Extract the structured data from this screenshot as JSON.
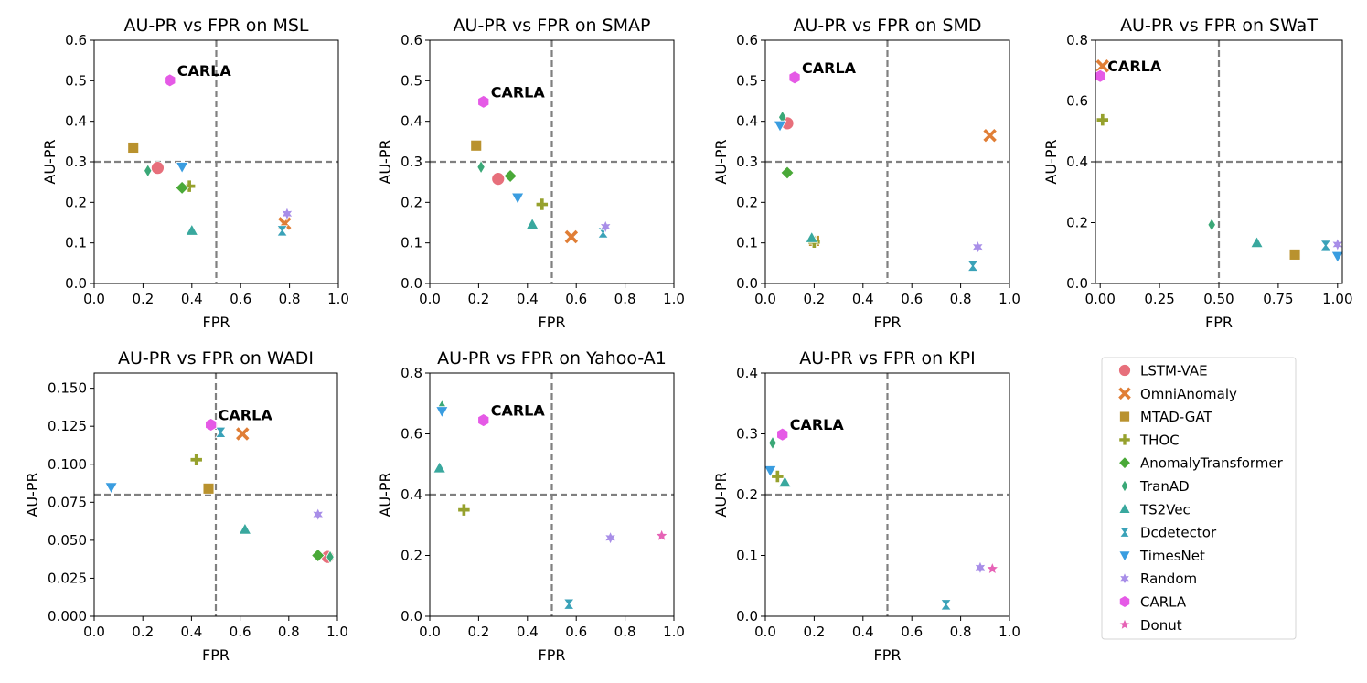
{
  "figure": "AU-PR vs FPR small multiples",
  "legend": [
    {
      "name": "LSTM-VAE",
      "color": "#e76f7b",
      "marker": "circle"
    },
    {
      "name": "OmniAnomaly",
      "color": "#e07e36",
      "marker": "x"
    },
    {
      "name": "MTAD-GAT",
      "color": "#b9922e",
      "marker": "square"
    },
    {
      "name": "THOC",
      "color": "#96a12d",
      "marker": "plus"
    },
    {
      "name": "AnomalyTransformer",
      "color": "#4aa938",
      "marker": "diamond"
    },
    {
      "name": "TranAD",
      "color": "#3aa877",
      "marker": "thin-diamond"
    },
    {
      "name": "TS2Vec",
      "color": "#39a89e",
      "marker": "triangle-up"
    },
    {
      "name": "Dcdetector",
      "color": "#3aa2b8",
      "marker": "bowtie"
    },
    {
      "name": "TimesNet",
      "color": "#3a9de0",
      "marker": "triangle-down"
    },
    {
      "name": "Random",
      "color": "#a88ee8",
      "marker": "star6"
    },
    {
      "name": "CARLA",
      "color": "#e55ae6",
      "marker": "hexagon"
    },
    {
      "name": "Donut",
      "color": "#e663b6",
      "marker": "star5"
    }
  ],
  "chart_data": [
    {
      "type": "scatter",
      "title": "AU-PR vs FPR on MSL",
      "xlabel": "FPR",
      "ylabel": "AU-PR",
      "xlim": [
        0,
        1
      ],
      "ylim": [
        0,
        0.6
      ],
      "xticks": [
        0,
        0.2,
        0.4,
        0.6,
        0.8,
        1.0
      ],
      "xtick_labels": [
        "0.0",
        "0.2",
        "0.4",
        "0.6",
        "0.8",
        "1.0"
      ],
      "yticks": [
        0,
        0.1,
        0.2,
        0.3,
        0.4,
        0.5,
        0.6
      ],
      "ytick_labels": [
        "0.0",
        "0.1",
        "0.2",
        "0.3",
        "0.4",
        "0.5",
        "0.6"
      ],
      "threshold_x": 0.5,
      "threshold_y": 0.3,
      "annotation": "CARLA",
      "points": [
        {
          "method": "LSTM-VAE",
          "x": 0.26,
          "y": 0.285
        },
        {
          "method": "OmniAnomaly",
          "x": 0.78,
          "y": 0.148
        },
        {
          "method": "MTAD-GAT",
          "x": 0.16,
          "y": 0.335
        },
        {
          "method": "THOC",
          "x": 0.39,
          "y": 0.24
        },
        {
          "method": "AnomalyTransformer",
          "x": 0.36,
          "y": 0.236
        },
        {
          "method": "TranAD",
          "x": 0.22,
          "y": 0.278
        },
        {
          "method": "TS2Vec",
          "x": 0.4,
          "y": 0.13
        },
        {
          "method": "Dcdetector",
          "x": 0.77,
          "y": 0.13
        },
        {
          "method": "TimesNet",
          "x": 0.36,
          "y": 0.288
        },
        {
          "method": "Random",
          "x": 0.79,
          "y": 0.172
        },
        {
          "method": "CARLA",
          "x": 0.31,
          "y": 0.501
        }
      ]
    },
    {
      "type": "scatter",
      "title": "AU-PR vs FPR on SMAP",
      "xlabel": "FPR",
      "ylabel": "AU-PR",
      "xlim": [
        0,
        1
      ],
      "ylim": [
        0,
        0.6
      ],
      "xticks": [
        0,
        0.2,
        0.4,
        0.6,
        0.8,
        1.0
      ],
      "xtick_labels": [
        "0.0",
        "0.2",
        "0.4",
        "0.6",
        "0.8",
        "1.0"
      ],
      "yticks": [
        0,
        0.1,
        0.2,
        0.3,
        0.4,
        0.5,
        0.6
      ],
      "ytick_labels": [
        "0.0",
        "0.1",
        "0.2",
        "0.3",
        "0.4",
        "0.5",
        "0.6"
      ],
      "threshold_x": 0.5,
      "threshold_y": 0.3,
      "annotation": "CARLA",
      "points": [
        {
          "method": "LSTM-VAE",
          "x": 0.28,
          "y": 0.258
        },
        {
          "method": "OmniAnomaly",
          "x": 0.58,
          "y": 0.115
        },
        {
          "method": "MTAD-GAT",
          "x": 0.19,
          "y": 0.34
        },
        {
          "method": "THOC",
          "x": 0.46,
          "y": 0.195
        },
        {
          "method": "AnomalyTransformer",
          "x": 0.33,
          "y": 0.265
        },
        {
          "method": "TranAD",
          "x": 0.21,
          "y": 0.287
        },
        {
          "method": "TS2Vec",
          "x": 0.42,
          "y": 0.145
        },
        {
          "method": "Dcdetector",
          "x": 0.71,
          "y": 0.125
        },
        {
          "method": "TimesNet",
          "x": 0.36,
          "y": 0.212
        },
        {
          "method": "Random",
          "x": 0.72,
          "y": 0.14
        },
        {
          "method": "CARLA",
          "x": 0.22,
          "y": 0.448
        }
      ]
    },
    {
      "type": "scatter",
      "title": "AU-PR vs FPR on SMD",
      "xlabel": "FPR",
      "ylabel": "AU-PR",
      "xlim": [
        0,
        1
      ],
      "ylim": [
        0,
        0.6
      ],
      "xticks": [
        0,
        0.2,
        0.4,
        0.6,
        0.8,
        1.0
      ],
      "xtick_labels": [
        "0.0",
        "0.2",
        "0.4",
        "0.6",
        "0.8",
        "1.0"
      ],
      "yticks": [
        0,
        0.1,
        0.2,
        0.3,
        0.4,
        0.5,
        0.6
      ],
      "ytick_labels": [
        "0.0",
        "0.1",
        "0.2",
        "0.3",
        "0.4",
        "0.5",
        "0.6"
      ],
      "threshold_x": 0.5,
      "threshold_y": 0.3,
      "annotation": "CARLA",
      "points": [
        {
          "method": "LSTM-VAE",
          "x": 0.09,
          "y": 0.395
        },
        {
          "method": "OmniAnomaly",
          "x": 0.92,
          "y": 0.365
        },
        {
          "method": "MTAD-GAT",
          "x": 0.2,
          "y": 0.105
        },
        {
          "method": "THOC",
          "x": 0.2,
          "y": 0.102
        },
        {
          "method": "AnomalyTransformer",
          "x": 0.09,
          "y": 0.273
        },
        {
          "method": "TranAD",
          "x": 0.07,
          "y": 0.41
        },
        {
          "method": "TS2Vec",
          "x": 0.19,
          "y": 0.112
        },
        {
          "method": "Dcdetector",
          "x": 0.85,
          "y": 0.043
        },
        {
          "method": "TimesNet",
          "x": 0.06,
          "y": 0.39
        },
        {
          "method": "Random",
          "x": 0.87,
          "y": 0.09
        },
        {
          "method": "CARLA",
          "x": 0.12,
          "y": 0.508
        }
      ]
    },
    {
      "type": "scatter",
      "title": "AU-PR vs FPR on SWaT",
      "xlabel": "FPR",
      "ylabel": "AU-PR",
      "xlim": [
        -0.02,
        1.02
      ],
      "ylim": [
        0,
        0.8
      ],
      "xticks": [
        0,
        0.25,
        0.5,
        0.75,
        1.0
      ],
      "xtick_labels": [
        "0.00",
        "0.25",
        "0.50",
        "0.75",
        "1.00"
      ],
      "yticks": [
        0,
        0.2,
        0.4,
        0.6,
        0.8
      ],
      "ytick_labels": [
        "0.0",
        "0.2",
        "0.4",
        "0.6",
        "0.8"
      ],
      "threshold_x": 0.5,
      "threshold_y": 0.4,
      "annotation": "CARLA",
      "points": [
        {
          "method": "OmniAnomaly",
          "x": 0.01,
          "y": 0.715
        },
        {
          "method": "MTAD-GAT",
          "x": 0.82,
          "y": 0.095
        },
        {
          "method": "THOC",
          "x": 0.01,
          "y": 0.538
        },
        {
          "method": "TranAD",
          "x": 0.47,
          "y": 0.193
        },
        {
          "method": "TS2Vec",
          "x": 0.66,
          "y": 0.133
        },
        {
          "method": "Dcdetector",
          "x": 0.95,
          "y": 0.125
        },
        {
          "method": "TimesNet",
          "x": 1.0,
          "y": 0.09
        },
        {
          "method": "Random",
          "x": 1.0,
          "y": 0.128
        },
        {
          "method": "CARLA",
          "x": 0.0,
          "y": 0.682
        }
      ]
    },
    {
      "type": "scatter",
      "title": "AU-PR vs FPR on WADI",
      "xlabel": "FPR",
      "ylabel": "AU-PR",
      "xlim": [
        0,
        1
      ],
      "ylim": [
        0,
        0.16
      ],
      "xticks": [
        0,
        0.2,
        0.4,
        0.6,
        0.8,
        1.0
      ],
      "xtick_labels": [
        "0.0",
        "0.2",
        "0.4",
        "0.6",
        "0.8",
        "1.0"
      ],
      "yticks": [
        0,
        0.025,
        0.05,
        0.075,
        0.1,
        0.125,
        0.15
      ],
      "ytick_labels": [
        "0.000",
        "0.025",
        "0.050",
        "0.075",
        "0.100",
        "0.125",
        "0.150"
      ],
      "threshold_x": 0.5,
      "threshold_y": 0.08,
      "annotation": "CARLA",
      "points": [
        {
          "method": "LSTM-VAE",
          "x": 0.96,
          "y": 0.039
        },
        {
          "method": "OmniAnomaly",
          "x": 0.61,
          "y": 0.12
        },
        {
          "method": "MTAD-GAT",
          "x": 0.47,
          "y": 0.084
        },
        {
          "method": "THOC",
          "x": 0.42,
          "y": 0.103
        },
        {
          "method": "AnomalyTransformer",
          "x": 0.92,
          "y": 0.04
        },
        {
          "method": "TranAD",
          "x": 0.97,
          "y": 0.039
        },
        {
          "method": "TS2Vec",
          "x": 0.62,
          "y": 0.057
        },
        {
          "method": "Dcdetector",
          "x": 0.52,
          "y": 0.121
        },
        {
          "method": "TimesNet",
          "x": 0.07,
          "y": 0.085
        },
        {
          "method": "Random",
          "x": 0.92,
          "y": 0.067
        },
        {
          "method": "CARLA",
          "x": 0.48,
          "y": 0.126
        }
      ]
    },
    {
      "type": "scatter",
      "title": "AU-PR vs FPR on Yahoo-A1",
      "xlabel": "FPR",
      "ylabel": "AU-PR",
      "xlim": [
        0,
        1
      ],
      "ylim": [
        0,
        0.8
      ],
      "xticks": [
        0,
        0.2,
        0.4,
        0.6,
        0.8,
        1.0
      ],
      "xtick_labels": [
        "0.0",
        "0.2",
        "0.4",
        "0.6",
        "0.8",
        "1.0"
      ],
      "yticks": [
        0,
        0.2,
        0.4,
        0.6,
        0.8
      ],
      "ytick_labels": [
        "0.0",
        "0.2",
        "0.4",
        "0.6",
        "0.8"
      ],
      "threshold_x": 0.5,
      "threshold_y": 0.4,
      "annotation": "CARLA",
      "points": [
        {
          "method": "THOC",
          "x": 0.14,
          "y": 0.35
        },
        {
          "method": "TranAD",
          "x": 0.05,
          "y": 0.69
        },
        {
          "method": "TS2Vec",
          "x": 0.04,
          "y": 0.487
        },
        {
          "method": "Dcdetector",
          "x": 0.57,
          "y": 0.04
        },
        {
          "method": "TimesNet",
          "x": 0.05,
          "y": 0.675
        },
        {
          "method": "Random",
          "x": 0.74,
          "y": 0.258
        },
        {
          "method": "CARLA",
          "x": 0.22,
          "y": 0.645
        },
        {
          "method": "Donut",
          "x": 0.95,
          "y": 0.265
        }
      ]
    },
    {
      "type": "scatter",
      "title": "AU-PR vs FPR on KPI",
      "xlabel": "FPR",
      "ylabel": "AU-PR",
      "xlim": [
        0,
        1
      ],
      "ylim": [
        0,
        0.4
      ],
      "xticks": [
        0,
        0.2,
        0.4,
        0.6,
        0.8,
        1.0
      ],
      "xtick_labels": [
        "0.0",
        "0.2",
        "0.4",
        "0.6",
        "0.8",
        "1.0"
      ],
      "yticks": [
        0,
        0.1,
        0.2,
        0.3,
        0.4
      ],
      "ytick_labels": [
        "0.0",
        "0.1",
        "0.2",
        "0.3",
        "0.4"
      ],
      "threshold_x": 0.5,
      "threshold_y": 0.2,
      "annotation": "CARLA",
      "points": [
        {
          "method": "THOC",
          "x": 0.05,
          "y": 0.23
        },
        {
          "method": "TranAD",
          "x": 0.03,
          "y": 0.285
        },
        {
          "method": "TS2Vec",
          "x": 0.08,
          "y": 0.22
        },
        {
          "method": "Dcdetector",
          "x": 0.74,
          "y": 0.019
        },
        {
          "method": "TimesNet",
          "x": 0.02,
          "y": 0.24
        },
        {
          "method": "Random",
          "x": 0.88,
          "y": 0.08
        },
        {
          "method": "CARLA",
          "x": 0.07,
          "y": 0.299
        },
        {
          "method": "Donut",
          "x": 0.93,
          "y": 0.078
        }
      ]
    }
  ]
}
